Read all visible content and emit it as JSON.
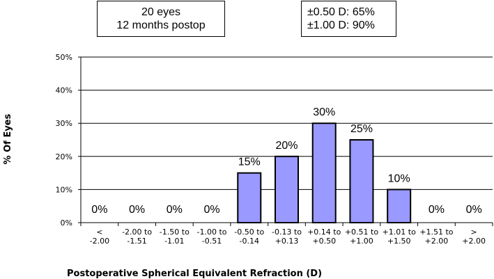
{
  "boxes": {
    "left": [
      "20 eyes",
      "12 months postop"
    ],
    "right": [
      "±0.50 D: 65%",
      "±1.00 D: 90%"
    ]
  },
  "chart_data": {
    "type": "bar",
    "title": "",
    "xlabel": "Postoperative Spherical Equivalent Refraction (D)",
    "ylabel": "% Of Eyes",
    "ylim": [
      0,
      50
    ],
    "y_ticks": [
      "0%",
      "10%",
      "20%",
      "30%",
      "40%",
      "50%"
    ],
    "grid": true,
    "bar_color": "#9999ff",
    "categories": [
      [
        "<",
        "-2.00"
      ],
      [
        "-2.00 to",
        "-1.51"
      ],
      [
        "-1.50 to",
        "-1.01"
      ],
      [
        "-1.00 to",
        "-0.51"
      ],
      [
        "-0.50 to",
        "-0.14"
      ],
      [
        "-0.13 to",
        "+0.13"
      ],
      [
        "+0.14 to",
        "+0.50"
      ],
      [
        "+0.51 to",
        "+1.00"
      ],
      [
        "+1.01 to",
        "+1.50"
      ],
      [
        "+1.51 to",
        "+2.00"
      ],
      [
        ">",
        "+2.00"
      ]
    ],
    "values": [
      0,
      0,
      0,
      0,
      15,
      20,
      30,
      25,
      10,
      0,
      0
    ],
    "data_labels": [
      "0%",
      "0%",
      "0%",
      "0%",
      "15%",
      "20%",
      "30%",
      "25%",
      "10%",
      "0%",
      "0%"
    ]
  }
}
